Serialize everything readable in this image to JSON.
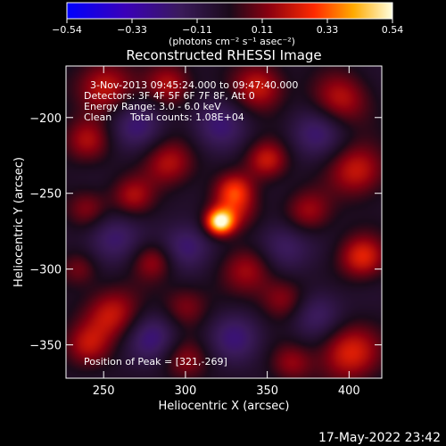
{
  "chart_data": {
    "type": "heatmap",
    "title": "Reconstructed RHESSI Image",
    "xlabel": "Heliocentric X (arcsec)",
    "ylabel": "Heliocentric Y (arcsec)",
    "xlim": [
      227,
      420
    ],
    "ylim": [
      -372,
      -166
    ],
    "x_ticks": [
      250,
      300,
      350,
      400
    ],
    "y_ticks": [
      -200,
      -250,
      -300,
      -350
    ],
    "colorbar": {
      "min": -0.54,
      "max": 0.54,
      "ticks": [
        "−0.54",
        "−0.33",
        "−0.11",
        "0.11",
        "0.33",
        "0.54"
      ],
      "unit_label": "(photons cm⁻² s⁻¹ asec⁻²)"
    },
    "annotations": {
      "time_range": "3-Nov-2013 09:45:24.000 to 09:47:40.000",
      "detectors": "Detectors: 3F 4F 5F 6F 7F 8F, Att 0",
      "energy": "Energy Range: 3.0 - 6.0 keV",
      "clean": "Clean",
      "counts": "Total counts: 1.08E+04",
      "peak": "Position of Peak = [321,-269]"
    },
    "peak": {
      "x": 321,
      "y": -269,
      "value": 0.54
    },
    "features": [
      {
        "x": 321,
        "y": -269,
        "sigma": 6,
        "amp": 1.0
      },
      {
        "x": 330,
        "y": -262,
        "sigma": 10,
        "amp": 0.35
      },
      {
        "x": 250,
        "y": -180,
        "sigma": 12,
        "amp": 0.45
      },
      {
        "x": 290,
        "y": -178,
        "sigma": 10,
        "amp": 0.4
      },
      {
        "x": 345,
        "y": -180,
        "sigma": 11,
        "amp": 0.45
      },
      {
        "x": 395,
        "y": -188,
        "sigma": 12,
        "amp": 0.4
      },
      {
        "x": 240,
        "y": -215,
        "sigma": 10,
        "amp": 0.35
      },
      {
        "x": 290,
        "y": -230,
        "sigma": 11,
        "amp": 0.4
      },
      {
        "x": 350,
        "y": -228,
        "sigma": 9,
        "amp": 0.45
      },
      {
        "x": 330,
        "y": -248,
        "sigma": 8,
        "amp": 0.45
      },
      {
        "x": 405,
        "y": -235,
        "sigma": 12,
        "amp": 0.45
      },
      {
        "x": 240,
        "y": -260,
        "sigma": 9,
        "amp": 0.3
      },
      {
        "x": 268,
        "y": -252,
        "sigma": 9,
        "amp": 0.35
      },
      {
        "x": 375,
        "y": -262,
        "sigma": 10,
        "amp": 0.35
      },
      {
        "x": 408,
        "y": -292,
        "sigma": 10,
        "amp": 0.5
      },
      {
        "x": 280,
        "y": -295,
        "sigma": 9,
        "amp": 0.35
      },
      {
        "x": 338,
        "y": -300,
        "sigma": 11,
        "amp": 0.35
      },
      {
        "x": 235,
        "y": -300,
        "sigma": 8,
        "amp": 0.25
      },
      {
        "x": 255,
        "y": -330,
        "sigma": 12,
        "amp": 0.45
      },
      {
        "x": 300,
        "y": -325,
        "sigma": 10,
        "amp": 0.3
      },
      {
        "x": 360,
        "y": -320,
        "sigma": 10,
        "amp": 0.35
      },
      {
        "x": 240,
        "y": -350,
        "sigma": 10,
        "amp": 0.35
      },
      {
        "x": 400,
        "y": -355,
        "sigma": 13,
        "amp": 0.5
      },
      {
        "x": 365,
        "y": -362,
        "sigma": 9,
        "amp": 0.3
      },
      {
        "x": 300,
        "y": -360,
        "sigma": 10,
        "amp": 0.3
      },
      {
        "x": 270,
        "y": -205,
        "sigma": 12,
        "amp": -0.3
      },
      {
        "x": 320,
        "y": -205,
        "sigma": 12,
        "amp": -0.3
      },
      {
        "x": 380,
        "y": -210,
        "sigma": 12,
        "amp": -0.3
      },
      {
        "x": 255,
        "y": -280,
        "sigma": 12,
        "amp": -0.3
      },
      {
        "x": 300,
        "y": -285,
        "sigma": 11,
        "amp": -0.35
      },
      {
        "x": 360,
        "y": -285,
        "sigma": 12,
        "amp": -0.3
      },
      {
        "x": 380,
        "y": -330,
        "sigma": 12,
        "amp": -0.3
      },
      {
        "x": 280,
        "y": -345,
        "sigma": 12,
        "amp": -0.35
      },
      {
        "x": 330,
        "y": -345,
        "sigma": 12,
        "amp": -0.3
      }
    ]
  },
  "footer": {
    "timestamp": "17-May-2022 23:42"
  }
}
